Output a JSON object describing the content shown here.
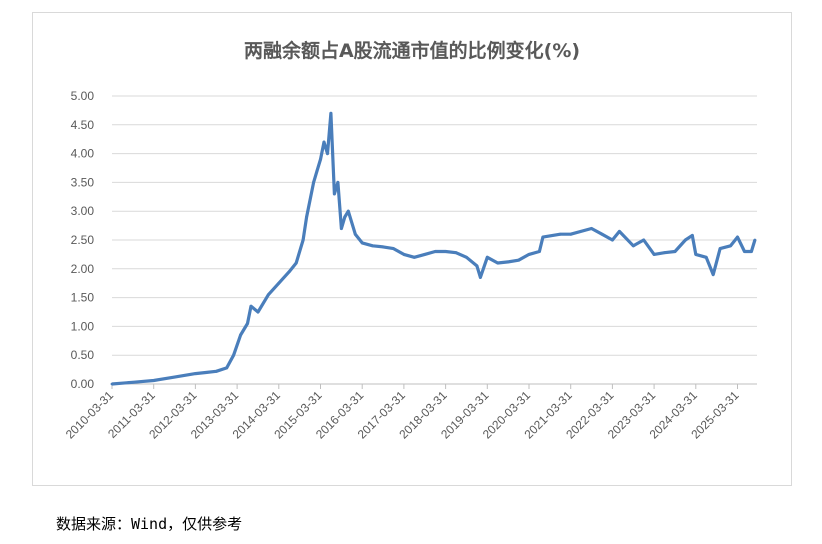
{
  "chart_data": {
    "type": "line",
    "title": "两融余额占A股流通市值的比例变化(%)",
    "xlabel": "",
    "ylabel": "",
    "ylim": [
      0,
      5
    ],
    "yticks": [
      "0.00",
      "0.50",
      "1.00",
      "1.50",
      "2.00",
      "2.50",
      "3.00",
      "3.50",
      "4.00",
      "4.50",
      "5.00"
    ],
    "xticks": [
      "2010-03-31",
      "2011-03-31",
      "2012-03-31",
      "2013-03-31",
      "2014-03-31",
      "2015-03-31",
      "2016-03-31",
      "2017-03-31",
      "2018-03-31",
      "2019-03-31",
      "2020-03-31",
      "2021-03-31",
      "2022-03-31",
      "2023-03-31",
      "2024-03-31",
      "2025-03-31"
    ],
    "grid": true,
    "color": "#4a7ebb",
    "series": [
      {
        "x": [
          "2010-03",
          "2010-09",
          "2011-03",
          "2011-09",
          "2012-03",
          "2012-06",
          "2012-09",
          "2012-12",
          "2013-02",
          "2013-04",
          "2013-06",
          "2013-07",
          "2013-09",
          "2013-12",
          "2014-03",
          "2014-06",
          "2014-08",
          "2014-10",
          "2014-11",
          "2015-01",
          "2015-02",
          "2015-03",
          "2015-04",
          "2015-05",
          "2015-06",
          "2015-07",
          "2015-08",
          "2015-09",
          "2015-10",
          "2015-11",
          "2016-01",
          "2016-03",
          "2016-06",
          "2016-09",
          "2016-12",
          "2017-03",
          "2017-06",
          "2017-09",
          "2017-12",
          "2018-03",
          "2018-06",
          "2018-09",
          "2018-12",
          "2019-01",
          "2019-03",
          "2019-06",
          "2019-09",
          "2019-12",
          "2020-03",
          "2020-06",
          "2020-07",
          "2020-12",
          "2021-03",
          "2021-09",
          "2021-12",
          "2022-03",
          "2022-05",
          "2022-09",
          "2022-12",
          "2023-03",
          "2023-06",
          "2023-09",
          "2023-12",
          "2024-02",
          "2024-03",
          "2024-06",
          "2024-08",
          "2024-10",
          "2025-01",
          "2025-03",
          "2025-05",
          "2025-07",
          "2025-08"
        ],
        "values": [
          0.0,
          0.03,
          0.06,
          0.12,
          0.18,
          0.2,
          0.22,
          0.28,
          0.5,
          0.85,
          1.05,
          1.35,
          1.25,
          1.55,
          1.75,
          1.95,
          2.1,
          2.5,
          2.9,
          3.5,
          3.7,
          3.9,
          4.2,
          4.0,
          4.7,
          3.3,
          3.5,
          2.7,
          2.9,
          3.0,
          2.6,
          2.45,
          2.4,
          2.38,
          2.35,
          2.25,
          2.2,
          2.25,
          2.3,
          2.3,
          2.28,
          2.2,
          2.05,
          1.85,
          2.2,
          2.1,
          2.12,
          2.15,
          2.25,
          2.3,
          2.55,
          2.6,
          2.6,
          2.7,
          2.6,
          2.5,
          2.65,
          2.4,
          2.5,
          2.25,
          2.28,
          2.3,
          2.5,
          2.58,
          2.25,
          2.2,
          1.9,
          2.35,
          2.4,
          2.55,
          2.3,
          2.3,
          2.5
        ]
      }
    ]
  },
  "source": "数据来源：Wind，仅供参考"
}
